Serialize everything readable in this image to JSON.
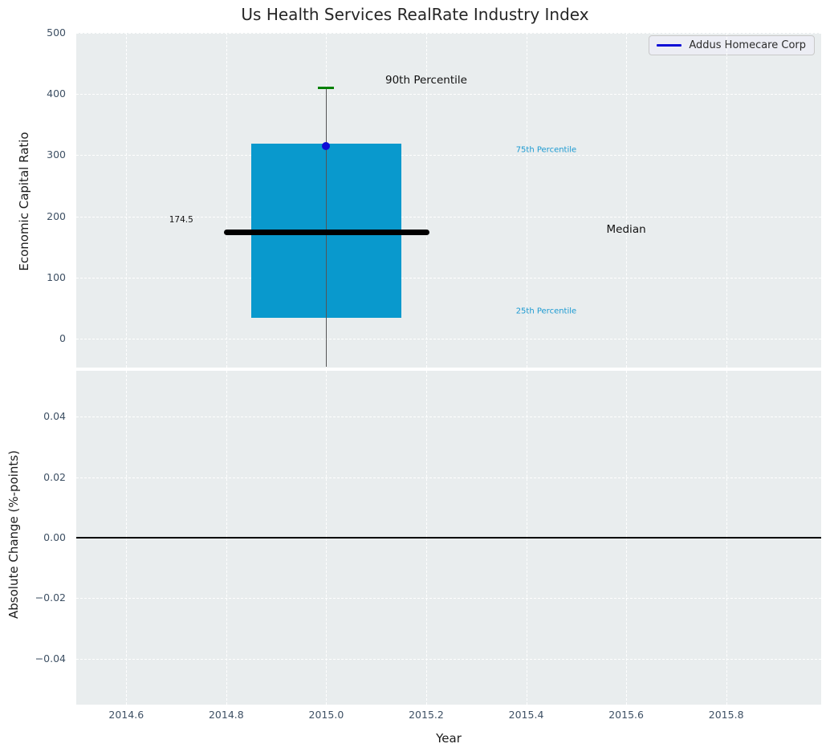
{
  "style": {
    "figure_background": "#ffffff",
    "axes_background": "#e9edee",
    "grid_color": "#ffffff",
    "tick_color": "#3e5064",
    "title_color": "#262626"
  },
  "chart_data": [
    {
      "type": "box",
      "title": "Us Health Services RealRate Industry Index",
      "ylabel": "Economic Capital Ratio",
      "xlim": [
        2014.5,
        2015.99
      ],
      "ylim": [
        -47.2,
        500
      ],
      "yticks": [
        500,
        400,
        300,
        200,
        100,
        0
      ],
      "ytick_labels": [
        "500",
        "400",
        "300",
        "200",
        "100",
        "0"
      ],
      "xgrid": [
        2014.6,
        2014.8,
        2015.0,
        2015.2,
        2015.4,
        2015.6,
        2015.8
      ],
      "grid": true,
      "box": {
        "x": 2015.0,
        "box_left": 2014.85,
        "box_right": 2015.15,
        "p90": 410,
        "p75": 318.5,
        "median": 174.5,
        "p25": 34.5,
        "whisker_low_clipped_at_axis_bottom": true,
        "median_line_left": 2014.795,
        "median_line_right": 2015.207,
        "box_color": "#0999cd",
        "median_color": "#000000",
        "cap_color": "#008000",
        "whisker_color": "#555555"
      },
      "point": {
        "name": "Addus Homecare Corp",
        "x": 2015.0,
        "y": 315.5,
        "color": "#0d0dd6"
      },
      "annotations": [
        {
          "text": "90th Percentile",
          "x": 2015.2,
          "y": 422,
          "color": "#111111",
          "size": 13.5
        },
        {
          "text": "75th Percentile",
          "x": 2015.44,
          "y": 309,
          "color": "#1a99d1",
          "size": 10
        },
        {
          "text": "Median",
          "x": 2015.6,
          "y": 178,
          "color": "#111111",
          "size": 13.5
        },
        {
          "text": "25th Percentile",
          "x": 2015.44,
          "y": 45,
          "color": "#1a99d1",
          "size": 10
        },
        {
          "text": "174.5",
          "x": 2014.71,
          "y": 194,
          "color": "#111111",
          "size": 10.5
        }
      ],
      "legend": {
        "label": "Addus Homecare Corp",
        "line_color": "#0d0dd6",
        "position": "upper right"
      }
    },
    {
      "type": "line",
      "ylabel": "Absolute Change (%-points)",
      "xlabel": "Year",
      "xlim": [
        2014.5,
        2015.99
      ],
      "ylim": [
        -0.0552,
        0.0552
      ],
      "yticks": [
        0.04,
        0.02,
        0.0,
        -0.02,
        -0.04
      ],
      "ytick_labels": [
        "0.04",
        "0.02",
        "0.00",
        "−0.02",
        "−0.04"
      ],
      "xticks": [
        2014.6,
        2014.8,
        2015.0,
        2015.2,
        2015.4,
        2015.6,
        2015.8
      ],
      "xtick_labels": [
        "2014.6",
        "2014.8",
        "2015.0",
        "2015.2",
        "2015.4",
        "2015.6",
        "2015.8"
      ],
      "grid": true,
      "zero_line": {
        "y": 0.0,
        "color": "#000000"
      },
      "series": [
        {
          "name": "Addus Homecare Corp",
          "color": "#0d0dd6",
          "x": [],
          "y": []
        }
      ]
    }
  ]
}
